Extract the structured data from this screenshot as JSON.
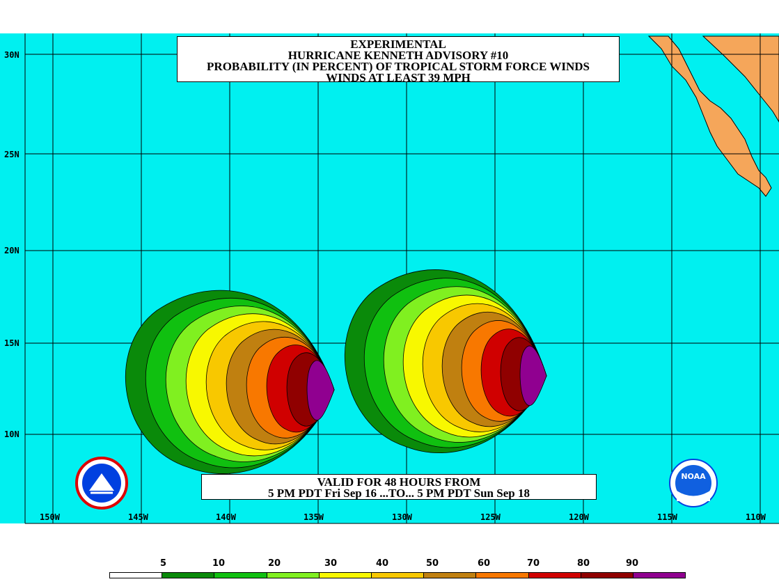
{
  "title": {
    "line1": "EXPERIMENTAL",
    "line2": "HURRICANE KENNETH ADVISORY #10",
    "line3": "PROBABILITY (IN PERCENT) OF TROPICAL STORM FORCE WINDS",
    "line4": "WINDS AT LEAST 39 MPH"
  },
  "valid": {
    "line1": "VALID FOR 48 HOURS FROM",
    "line2": "5 PM PDT Fri Sep 16 ...TO... 5 PM PDT Sun Sep 18"
  },
  "lat_labels": [
    "30N",
    "25N",
    "20N",
    "15N",
    "10N"
  ],
  "lon_labels": [
    "150W",
    "145W",
    "140W",
    "135W",
    "130W",
    "125W",
    "120W",
    "115W",
    "110W"
  ],
  "legend": {
    "labels": [
      "5",
      "10",
      "20",
      "30",
      "40",
      "50",
      "60",
      "70",
      "80",
      "90"
    ],
    "colors": [
      "#ffffff",
      "#0a8a0a",
      "#10c010",
      "#80f020",
      "#f8f800",
      "#f8c800",
      "#c08010",
      "#f87800",
      "#d00000",
      "#900000",
      "#900090"
    ]
  },
  "colors": {
    "ocean": "#00f0f0",
    "land": "#f5a65a",
    "grid": "#000000"
  },
  "icons": {
    "left_logo": "nws-logo",
    "right_logo": "noaa-logo"
  }
}
